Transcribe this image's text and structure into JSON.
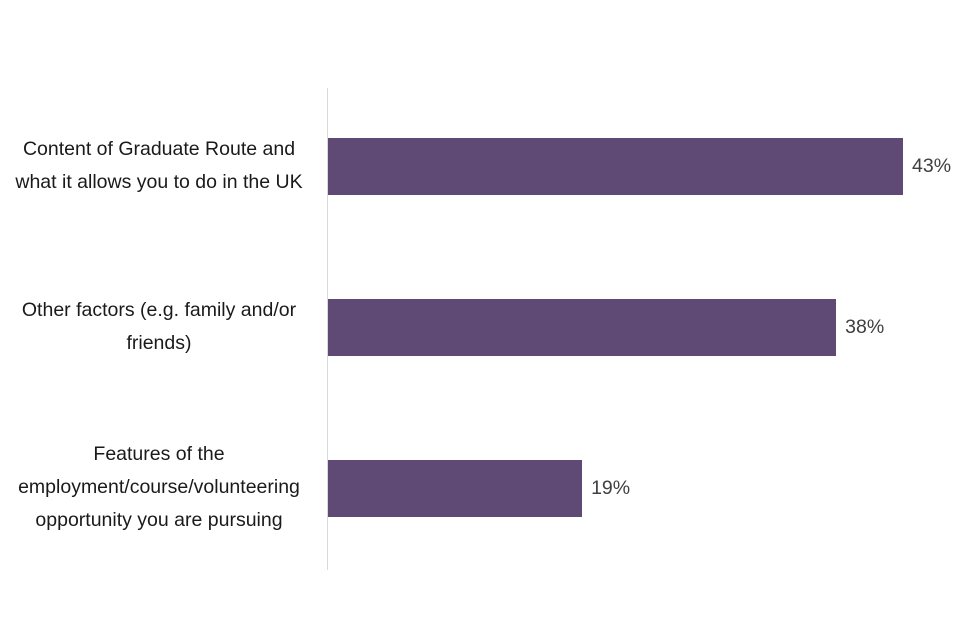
{
  "chart_data": {
    "type": "bar",
    "orientation": "horizontal",
    "title": "",
    "xlabel": "",
    "ylabel": "",
    "categories": [
      "Content of Graduate Route and what it allows you to do in the UK",
      "Other factors (e.g. family and/or friends)",
      "Features of the employment/course/volunteering opportunity you are pursuing"
    ],
    "values": [
      43,
      38,
      19
    ],
    "value_labels": [
      "43%",
      "38%",
      "19%"
    ],
    "xlim": [
      0,
      45
    ],
    "grid": false,
    "legend": null,
    "bar_color": "#5f4a75"
  },
  "labels": {
    "cat0": [
      "Content of Graduate Route and",
      "what it allows you to do in the UK"
    ],
    "cat1": [
      "Other factors (e.g. family and/or",
      "friends)"
    ],
    "cat2": [
      "Features of the",
      "employment/course/volunteering",
      "opportunity you are pursuing"
    ]
  }
}
